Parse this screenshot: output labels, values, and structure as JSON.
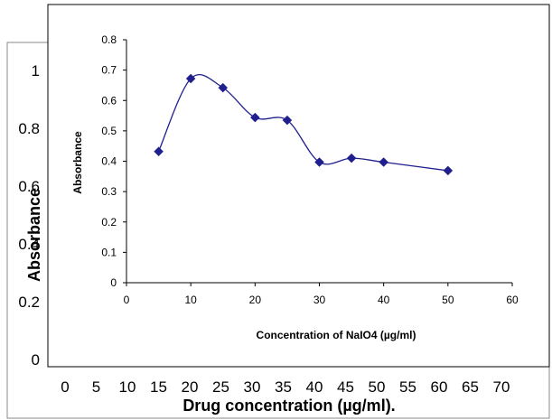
{
  "chart_data": [
    {
      "type": "line",
      "role": "background-chart",
      "xlabel": "Drug concentration (µg/ml).",
      "ylabel": "Absorbance",
      "x_ticks": [
        "0",
        "5",
        "10",
        "15",
        "20",
        "25",
        "30",
        "35",
        "40",
        "45",
        "50",
        "55",
        "60",
        "65",
        "70"
      ],
      "y_ticks": [
        "0",
        "0.2",
        "0.4",
        "0.6",
        "0.8",
        "1"
      ],
      "xlim": [
        0,
        70
      ],
      "ylim": [
        0,
        1
      ],
      "grid": false
    },
    {
      "type": "line",
      "role": "inset-chart",
      "xlabel": "Concentration of NaIO4 (µg/ml)",
      "ylabel": "Absorbance",
      "x_ticks": [
        "0",
        "10",
        "20",
        "30",
        "40",
        "50",
        "60"
      ],
      "y_ticks": [
        "0",
        "0.1",
        "0.2",
        "0.3",
        "0.4",
        "0.5",
        "0.6",
        "0.7",
        "0.8"
      ],
      "xlim": [
        0,
        60
      ],
      "ylim": [
        0,
        0.8
      ],
      "grid": false,
      "smooth": true,
      "marker": "diamond",
      "line_color": "#1f1f8f",
      "series": [
        {
          "x": [
            5,
            10,
            15,
            20,
            25,
            30,
            35,
            40,
            50
          ],
          "y": [
            0.432,
            0.672,
            0.642,
            0.544,
            0.535,
            0.397,
            0.41,
            0.397,
            0.369
          ]
        }
      ]
    }
  ]
}
